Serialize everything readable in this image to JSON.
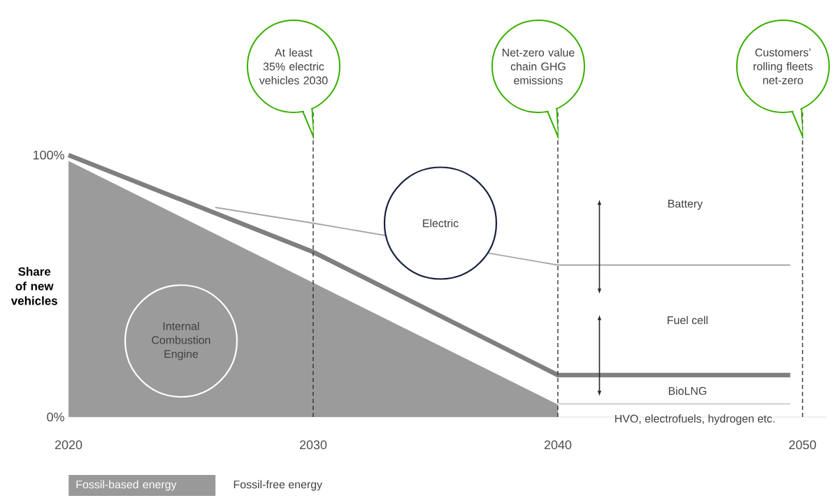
{
  "chart_data": {
    "type": "line",
    "ylabel": "Share of new vehicles",
    "xlim": [
      2020,
      2051
    ],
    "xticks": [
      2020,
      2030,
      2040,
      2050
    ],
    "ylim": [
      0,
      100
    ],
    "yticks": [
      {
        "value": 0,
        "label": "0%"
      },
      {
        "value": 100,
        "label": "100%"
      }
    ],
    "grid": false,
    "series": [
      {
        "type": "area",
        "color": "#9b9b9b",
        "x": [
          2020,
          2040
        ],
        "values": [
          98,
          5
        ]
      },
      {
        "color": "#d0d0d0",
        "x": [
          2040,
          2049.5
        ],
        "values": [
          5,
          5
        ]
      },
      {
        "color": "#a6a6a6",
        "x": [
          2026,
          2030,
          2040,
          2049.5
        ],
        "values": [
          80,
          74,
          58,
          58
        ]
      },
      {
        "color": "#7f7f7f",
        "x": [
          2020,
          2030,
          2040,
          2049.5
        ],
        "values": [
          100,
          63,
          16,
          16
        ]
      }
    ],
    "ref_lines": [
      {
        "axis": "x",
        "value": 2030,
        "label": "At least 35% electric vehicles 2030",
        "color": "#333333",
        "line_style": "dashed"
      },
      {
        "axis": "x",
        "value": 2040,
        "label": "Net-zero value chain GHG emissions",
        "color": "#333333",
        "line_style": "dashed"
      },
      {
        "axis": "x",
        "value": 2050,
        "label": "Customers’ rolling fleets net-zero",
        "color": "#333333",
        "line_style": "dashed"
      }
    ],
    "annotations": [
      "Electric",
      "Internal Combustion Engine",
      "Battery",
      "Fuel cell",
      "BioLNG",
      "HVO, electrofuels, hydrogen etc.",
      "Fossil-based energy",
      "Fossil-free energy"
    ]
  }
}
